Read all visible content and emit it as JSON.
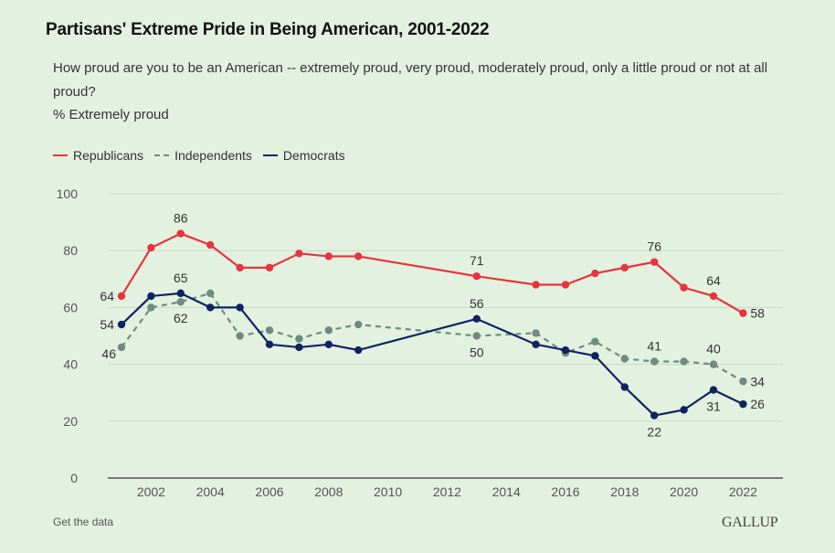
{
  "header": {
    "title": "Partisans' Extreme Pride in Being American, 2001-2022",
    "subtitle": "How proud are you to be an American -- extremely proud, very proud, moderately proud, only a little proud or not at all proud?",
    "unit": "% Extremely proud"
  },
  "footer": {
    "get_data_label": "Get the data",
    "brand": "GALLUP"
  },
  "chart_data": {
    "type": "line",
    "title": "Partisans' Extreme Pride in Being American, 2001-2022",
    "xlabel": "",
    "ylabel": "% Extremely proud",
    "ylim": [
      0,
      100
    ],
    "xlim": [
      2000,
      2023
    ],
    "yticks": [
      0,
      20,
      40,
      60,
      80,
      100
    ],
    "xticks": [
      2002,
      2004,
      2006,
      2008,
      2010,
      2012,
      2014,
      2016,
      2018,
      2020,
      2022
    ],
    "grid": true,
    "legend_position": "top-left",
    "x": [
      2001,
      2002,
      2003,
      2004,
      2005,
      2006,
      2007,
      2008,
      2009,
      2013,
      2015,
      2016,
      2017,
      2018,
      2019,
      2020,
      2021,
      2022
    ],
    "series": [
      {
        "name": "Republicans",
        "color": "#e8343c",
        "style": "solid",
        "values": [
          64,
          81,
          86,
          82,
          74,
          74,
          79,
          78,
          78,
          71,
          68,
          68,
          72,
          74,
          76,
          67,
          64,
          58
        ],
        "labels": [
          {
            "x": 2001,
            "value": 64,
            "pos": "left"
          },
          {
            "x": 2003,
            "value": 86,
            "pos": "above"
          },
          {
            "x": 2013,
            "value": 71,
            "pos": "above"
          },
          {
            "x": 2019,
            "value": 76,
            "pos": "above"
          },
          {
            "x": 2021,
            "value": 64,
            "pos": "above"
          },
          {
            "x": 2022,
            "value": 58,
            "pos": "right"
          }
        ]
      },
      {
        "name": "Independents",
        "color": "#6f8a7f",
        "style": "dashed",
        "values": [
          46,
          60,
          62,
          65,
          50,
          52,
          49,
          52,
          54,
          50,
          51,
          44,
          48,
          42,
          41,
          41,
          40,
          34
        ],
        "labels": [
          {
            "x": 2001,
            "value": 46,
            "pos": "below-left"
          },
          {
            "x": 2003,
            "value": 62,
            "pos": "below"
          },
          {
            "x": 2013,
            "value": 50,
            "pos": "below"
          },
          {
            "x": 2019,
            "value": 41,
            "pos": "above"
          },
          {
            "x": 2021,
            "value": 40,
            "pos": "above"
          },
          {
            "x": 2022,
            "value": 34,
            "pos": "right"
          }
        ]
      },
      {
        "name": "Democrats",
        "color": "#0d2461",
        "style": "solid",
        "values": [
          54,
          64,
          65,
          60,
          60,
          47,
          46,
          47,
          45,
          56,
          47,
          45,
          43,
          32,
          22,
          24,
          31,
          26
        ],
        "labels": [
          {
            "x": 2001,
            "value": 54,
            "pos": "left"
          },
          {
            "x": 2003,
            "value": 65,
            "pos": "above"
          },
          {
            "x": 2013,
            "value": 56,
            "pos": "above"
          },
          {
            "x": 2019,
            "value": 22,
            "pos": "below"
          },
          {
            "x": 2021,
            "value": 31,
            "pos": "below"
          },
          {
            "x": 2022,
            "value": 26,
            "pos": "right"
          }
        ]
      }
    ]
  }
}
